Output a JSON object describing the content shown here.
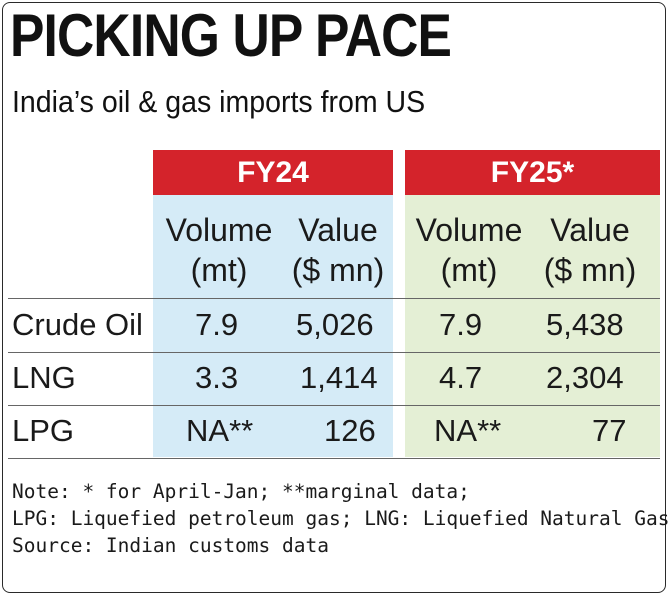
{
  "title": "PICKING UP PACE",
  "subtitle": "India’s oil & gas imports from US",
  "chart_data": {
    "type": "table",
    "groups": [
      {
        "label": "FY24",
        "color": "#d4232b",
        "background": "#d5ebf7"
      },
      {
        "label": "FY25*",
        "color": "#d4232b",
        "background": "#e4efd5"
      }
    ],
    "column_headers": {
      "volume": [
        "Volume",
        "(mt)"
      ],
      "value": [
        "Value",
        "($ mn)"
      ]
    },
    "rows": [
      {
        "label": "Crude Oil",
        "fy24_volume": "7.9",
        "fy24_value": "5,026",
        "fy25_volume": "7.9",
        "fy25_value": "5,438"
      },
      {
        "label": "LNG",
        "fy24_volume": "3.3",
        "fy24_value": "1,414",
        "fy25_volume": "4.7",
        "fy25_value": "2,304"
      },
      {
        "label": "LPG",
        "fy24_volume": "NA**",
        "fy24_value": "126",
        "fy25_volume": "NA**",
        "fy25_value": "77"
      }
    ]
  },
  "notes": [
    "Note: * for April-Jan; **marginal data;",
    "LPG: Liquefied petroleum gas; LNG: Liquefied Natural Gas",
    "Source: Indian customs data"
  ]
}
